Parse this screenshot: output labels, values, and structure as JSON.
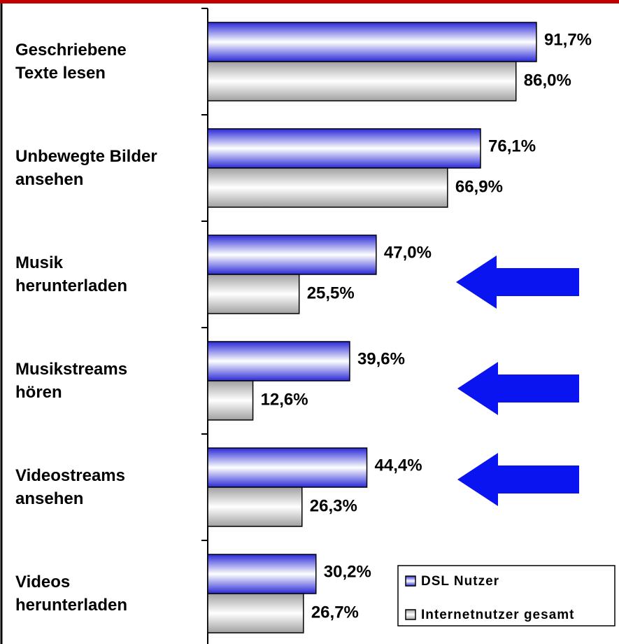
{
  "chart_data": {
    "type": "barh",
    "categories": [
      "Geschriebene\nTexte lesen",
      "Unbewegte Bilder\nansehen",
      "Musik\nherunterladen",
      "Musikstreams\nhören",
      "Videostreams\nansehen",
      "Videos\nherunterladen"
    ],
    "series": [
      {
        "name": "DSL Nutzer",
        "color": "#2a2ad8",
        "values": [
          91.7,
          76.1,
          47.0,
          39.6,
          44.4,
          30.2
        ],
        "value_labels": [
          "91,7%",
          "76,1%",
          "47,0%",
          "39,6%",
          "44,4%",
          "30,2%"
        ]
      },
      {
        "name": "Internetnutzer gesamt",
        "color": "#a0a0a0",
        "values": [
          86.0,
          66.9,
          25.5,
          12.6,
          26.3,
          26.7
        ],
        "value_labels": [
          "86,0%",
          "66,9%",
          "25,5%",
          "12,6%",
          "26,3%",
          "26,7%"
        ]
      }
    ],
    "xlim": [
      0,
      100
    ],
    "legend": "lower right"
  }
}
